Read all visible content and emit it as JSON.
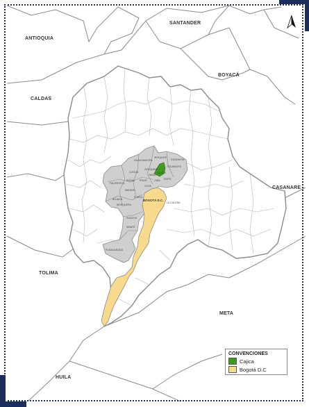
{
  "map": {
    "neighbors": {
      "antioquia": "ANTIOQUIA",
      "santander": "SANTANDER",
      "boyaca": "BOYACÁ",
      "caldas": "CALDAS",
      "casanare": "CASANARE",
      "tolima": "TOLIMA",
      "meta": "META",
      "huila": "HUILA"
    },
    "municipalities": {
      "cucunuba_guachancipa": "GUACHANCIPÁ",
      "sesquile": "SESQUILÉ",
      "guatavita": "GUATAVITA",
      "tocancipa": "TOCANCIPÁ",
      "zipaquira": "ZIPAQUIRÁ",
      "cogua": "COGUA",
      "tabio": "TABIO",
      "cajica": "CAJICÁ",
      "sopo": "SOPÓ",
      "chia": "CHÍA",
      "cota": "COTA",
      "tenjo": "TENJO",
      "madrid": "MADRID",
      "facatativa": "FACATATIVÁ",
      "rosal": "ROSAL",
      "bojaca": "BOJACÁ",
      "mosquera": "MOSQUERA",
      "funza": "FUNZA",
      "bogota": "BOGOTÁ D.C.",
      "la_calera": "LA CALERA",
      "soacha": "SOACHA",
      "sibate": "SIBATÉ",
      "fusagasuga": "FUSAGASUGÁ"
    },
    "colors": {
      "cajica": "#3f9a1f",
      "bogota": "#f7da8b",
      "metro": "#cfcfcf",
      "border": "#8a8a8a",
      "frame": "#1b2e5e"
    }
  },
  "legend": {
    "title": "CONVENCIONES",
    "items": [
      {
        "label": "Cajica",
        "color": "#3f9a1f"
      },
      {
        "label": "Bogotá D.C",
        "color": "#f7da8b"
      }
    ]
  },
  "north_arrow": {
    "label": "N"
  }
}
